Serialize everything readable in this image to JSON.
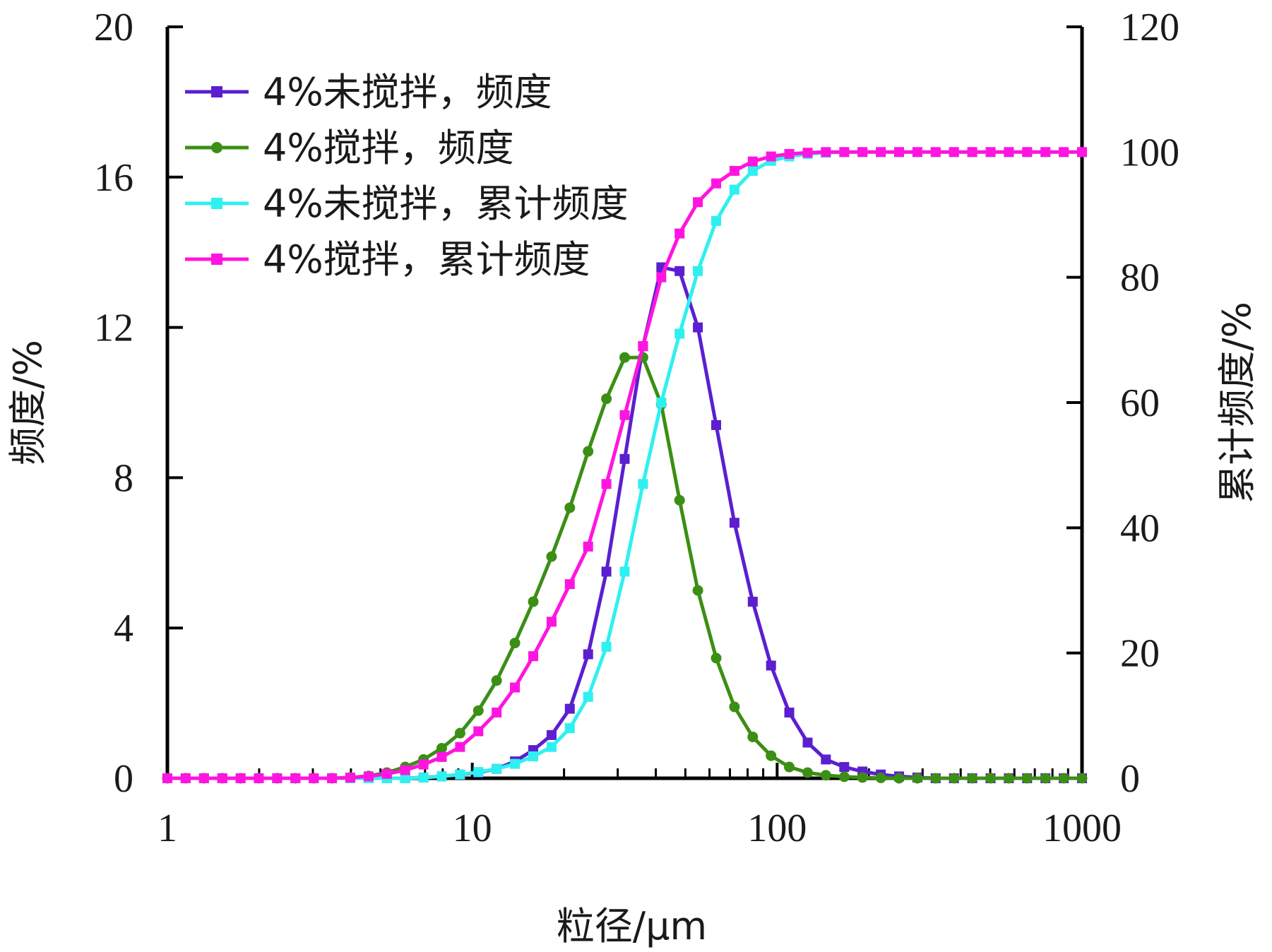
{
  "chart_data": {
    "type": "line",
    "x_scale": "log",
    "xlim": [
      1,
      1000
    ],
    "ylim_left": [
      0,
      20
    ],
    "ylim_right": [
      0,
      120
    ],
    "xlabel": "粒径/μm",
    "ylabel_left": "频度/%",
    "ylabel_right": "累计频度/%",
    "x_ticks": [
      "1",
      "10",
      "100",
      "1000"
    ],
    "y_left_ticks": [
      "0",
      "4",
      "8",
      "12",
      "16",
      "20"
    ],
    "y_right_ticks": [
      "0",
      "20",
      "40",
      "60",
      "80",
      "100",
      "120"
    ],
    "legend_position": "top-left",
    "grid": false,
    "x": [
      1,
      1.148,
      1.318,
      1.514,
      1.738,
      1.995,
      2.291,
      2.63,
      3.02,
      3.467,
      3.981,
      4.571,
      5.248,
      6.026,
      6.918,
      7.943,
      9.12,
      10.47,
      12.02,
      13.8,
      15.85,
      18.2,
      20.89,
      23.99,
      27.54,
      31.62,
      36.31,
      41.69,
      47.86,
      54.95,
      63.1,
      72.44,
      83.18,
      95.5,
      109.6,
      125.9,
      144.5,
      166,
      190.5,
      218.8,
      251.2,
      288.4,
      331.1,
      380.2,
      436.5,
      501.2,
      575.4,
      660.7,
      758.6,
      871,
      1000
    ],
    "series": [
      {
        "name": "4%未搅拌，频度",
        "axis": "left",
        "color": "#5b1fd0",
        "marker": "square",
        "values": [
          0,
          0,
          0,
          0,
          0,
          0,
          0,
          0,
          0,
          0,
          0,
          0,
          0,
          0,
          0.02,
          0.05,
          0.1,
          0.15,
          0.25,
          0.45,
          0.75,
          1.15,
          1.85,
          3.3,
          5.5,
          8.5,
          11.5,
          13.6,
          13.5,
          12.0,
          9.4,
          6.8,
          4.7,
          3.0,
          1.75,
          0.95,
          0.5,
          0.3,
          0.18,
          0.1,
          0.05,
          0.02,
          0,
          0,
          0,
          0,
          0,
          0,
          0,
          0,
          0
        ]
      },
      {
        "name": "4%搅拌，频度",
        "axis": "left",
        "color": "#3b8f14",
        "marker": "circle",
        "values": [
          0,
          0,
          0,
          0,
          0,
          0,
          0,
          0,
          0,
          0,
          0.02,
          0.06,
          0.15,
          0.3,
          0.5,
          0.8,
          1.2,
          1.8,
          2.6,
          3.6,
          4.7,
          5.9,
          7.2,
          8.7,
          10.1,
          11.2,
          11.2,
          9.95,
          7.4,
          5.0,
          3.2,
          1.9,
          1.1,
          0.6,
          0.3,
          0.15,
          0.08,
          0.04,
          0.02,
          0.01,
          0,
          0,
          0,
          0,
          0,
          0,
          0,
          0,
          0,
          0,
          0
        ]
      },
      {
        "name": "4%未搅拌，累计频度",
        "axis": "right",
        "color": "#2ff0f0",
        "marker": "square",
        "values": [
          0,
          0,
          0,
          0,
          0,
          0,
          0,
          0,
          0,
          0,
          0,
          0,
          0,
          0,
          0.1,
          0.3,
          0.6,
          1.0,
          1.5,
          2.3,
          3.5,
          5.0,
          8.0,
          13.0,
          21.0,
          33.0,
          47.0,
          60.0,
          71.0,
          81.0,
          89.0,
          94.0,
          97.0,
          98.6,
          99.3,
          99.7,
          99.9,
          100,
          100,
          100,
          100,
          100,
          100,
          100,
          100,
          100,
          100,
          100,
          100,
          100,
          100
        ]
      },
      {
        "name": "4%搅拌，累计频度",
        "axis": "right",
        "color": "#ff14e0",
        "marker": "square",
        "values": [
          0,
          0,
          0,
          0,
          0,
          0,
          0,
          0,
          0,
          0,
          0.1,
          0.3,
          0.7,
          1.3,
          2.2,
          3.4,
          5.0,
          7.5,
          10.5,
          14.5,
          19.5,
          25.0,
          31.0,
          37.0,
          47.0,
          58.0,
          69.0,
          80.0,
          87.0,
          92.0,
          95.0,
          97.0,
          98.5,
          99.3,
          99.7,
          99.9,
          100,
          100,
          100,
          100,
          100,
          100,
          100,
          100,
          100,
          100,
          100,
          100,
          100,
          100,
          100
        ]
      }
    ]
  }
}
